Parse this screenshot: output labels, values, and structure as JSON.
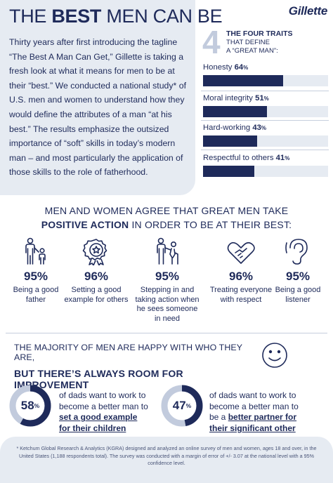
{
  "header": {
    "title_pre": "THE",
    "title_bold": "BEST",
    "title_post": "MEN CAN BE",
    "brand": "Gillette",
    "intro": "Thirty years after first introducing the tagline “The Best A Man Can Get,” Gillette is taking a fresh look at what it means for men to be at their “best.” We conducted a national study* of U.S. men and women to understand how they would define the attributes of a man “at his best.” The results emphasize the outsized importance of “soft” skills in today’s modern man – and most particularly the application of those skills to the role of fatherhood."
  },
  "traits": {
    "big_number": "4",
    "heading_line1": "THE FOUR TRAITS",
    "heading_line2": "THAT DEFINE",
    "heading_line3": "A “GREAT MAN”:",
    "items": [
      {
        "label": "Honesty",
        "value": "64",
        "unit": "%",
        "fraction": 0.64
      },
      {
        "label": "Moral integrity",
        "value": "51",
        "unit": "%",
        "fraction": 0.51
      },
      {
        "label": "Hard-working",
        "value": "43",
        "unit": "%",
        "fraction": 0.43
      },
      {
        "label": "Respectful to others",
        "value": "41",
        "unit": "%",
        "fraction": 0.41
      }
    ]
  },
  "agree": {
    "line1": "MEN AND WOMEN AGREE THAT GREAT MEN TAKE",
    "line2_bold": "POSITIVE ACTION",
    "line2_rest": " IN ORDER TO BE AT THEIR BEST:",
    "items": [
      {
        "icon": "father-child-icon",
        "pct": "95%",
        "desc": "Being a good father"
      },
      {
        "icon": "award-badge-icon",
        "pct": "96%",
        "desc": "Setting a good example for others"
      },
      {
        "icon": "helping-person-icon",
        "pct": "95%",
        "desc": "Stepping in and taking action when he sees someone in need"
      },
      {
        "icon": "heart-hands-icon",
        "pct": "96%",
        "desc": "Treating everyone with respect"
      },
      {
        "icon": "ear-icon",
        "pct": "95%",
        "desc": "Being a good listener"
      }
    ]
  },
  "improve": {
    "line1": "THE MAJORITY OF MEN ARE HAPPY WITH WHO THEY ARE,",
    "line2": "BUT THERE’S ALWAYS ROOM FOR IMPROVEMENT",
    "stats": [
      {
        "value": "58",
        "unit": "%",
        "fraction": 0.58,
        "text": "of dads want to work to become a better man to ",
        "bold": "set a good example for their children"
      },
      {
        "value": "47",
        "unit": "%",
        "fraction": 0.47,
        "text": "of dads want to work to become a better man to be a ",
        "bold": "better partner for their significant other"
      }
    ]
  },
  "footnote": "* Ketchum Global Research & Analytics (KGRA) designed and analyzed an online survey of men and women, ages 18 and over, in the United States (1,188 respondents total). The survey was conducted with a margin of error of +/- 3.07 at the national level with a 95% confidence level.",
  "colors": {
    "navy": "#1e2a5a",
    "light": "#e6ebf2",
    "accent_light": "#c2cbdd"
  }
}
